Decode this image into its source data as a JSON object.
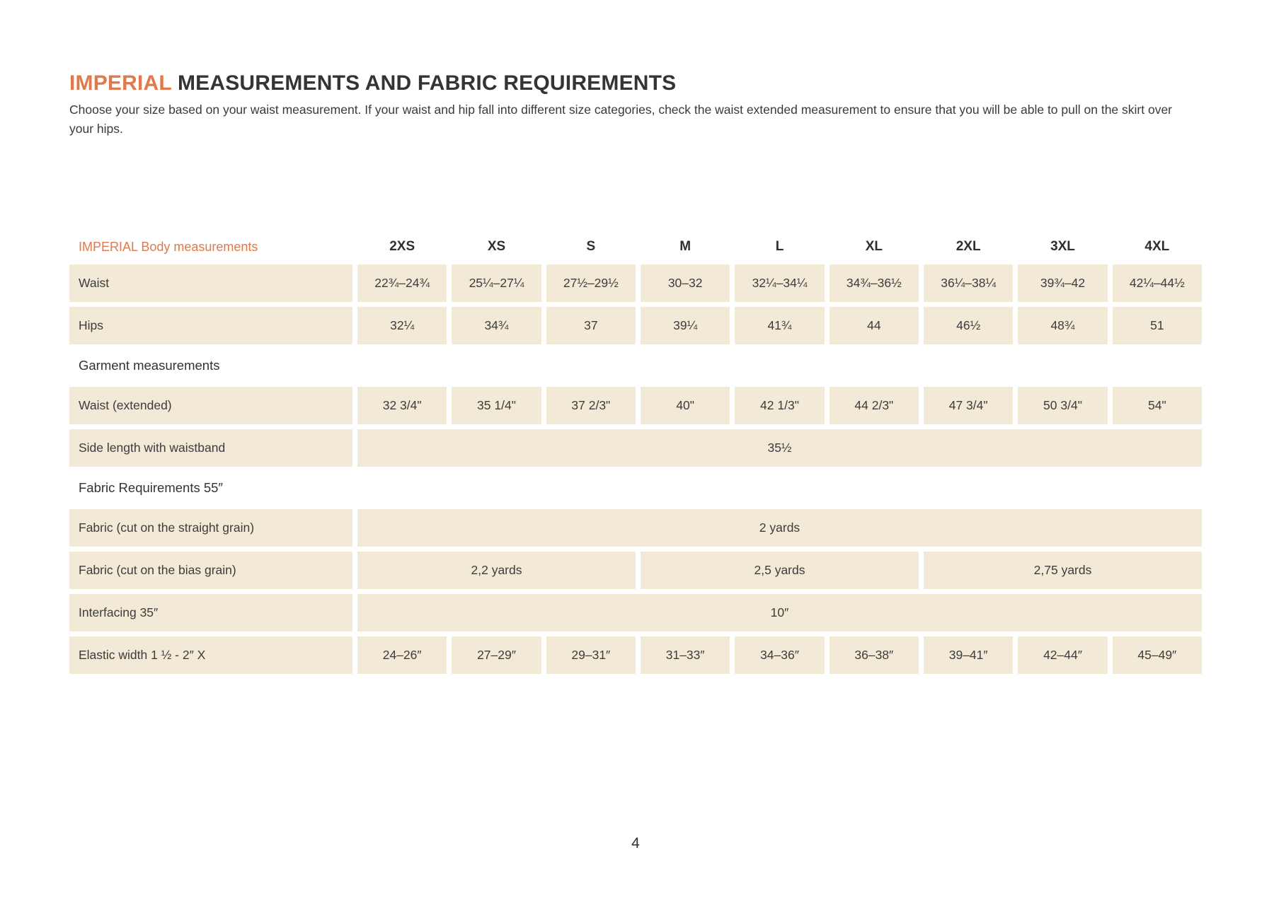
{
  "page": {
    "title_accent": "IMPERIAL",
    "title_rest": " MEASUREMENTS AND FABRIC REQUIREMENTS",
    "intro": "Choose your size based on your waist measurement. If your waist and hip fall into different size categories, check the waist extended measurement to ensure that you will be able to pull on the skirt over your hips.",
    "page_number": "4"
  },
  "colors": {
    "accent_orange": "#e0794b",
    "cell_beige": "#f2e9d6",
    "text_dark": "#3b3b3b"
  },
  "table": {
    "header": {
      "label": "IMPERIAL Body measurements",
      "sizes": [
        "2XS",
        "XS",
        "S",
        "M",
        "L",
        "XL",
        "2XL",
        "3XL",
        "4XL"
      ]
    },
    "waist": {
      "label": "Waist",
      "values": [
        "22¾–24¾",
        "25¼–27¼",
        "27½–29½",
        "30–32",
        "32¼–34¼",
        "34¾–36½",
        "36¼–38¼",
        "39¾–42",
        "42¼–44½"
      ]
    },
    "hips": {
      "label": "Hips",
      "values": [
        "32¼",
        "34¾",
        "37",
        "39¼",
        "41¾",
        "44",
        "46½",
        "48¾",
        "51"
      ]
    },
    "garment_section": "Garment measurements",
    "waist_extended": {
      "label": "Waist (extended)",
      "values": [
        "32 3/4\"",
        "35 1/4\"",
        "37 2/3\"",
        "40\"",
        "42 1/3\"",
        "44 2/3\"",
        "47 3/4\"",
        "50 3/4\"",
        "54\""
      ]
    },
    "side_length": {
      "label": "Side length with waistband",
      "value": "35½"
    },
    "fabric_section": "Fabric Requirements 55″",
    "fabric_straight": {
      "label": "Fabric (cut on the straight grain)",
      "value": "2 yards"
    },
    "fabric_bias": {
      "label": "Fabric (cut on the bias grain)",
      "values": [
        "2,2 yards",
        "2,5 yards",
        "2,75 yards"
      ]
    },
    "interfacing": {
      "label": "Interfacing 35″",
      "value": "10″"
    },
    "elastic": {
      "label": "Elastic width 1 ½ - 2″ X",
      "values": [
        "24–26″",
        "27–29″",
        "29–31″",
        "31–33″",
        "34–36″",
        "36–38″",
        "39–41″",
        "42–44″",
        "45–49″"
      ]
    }
  }
}
